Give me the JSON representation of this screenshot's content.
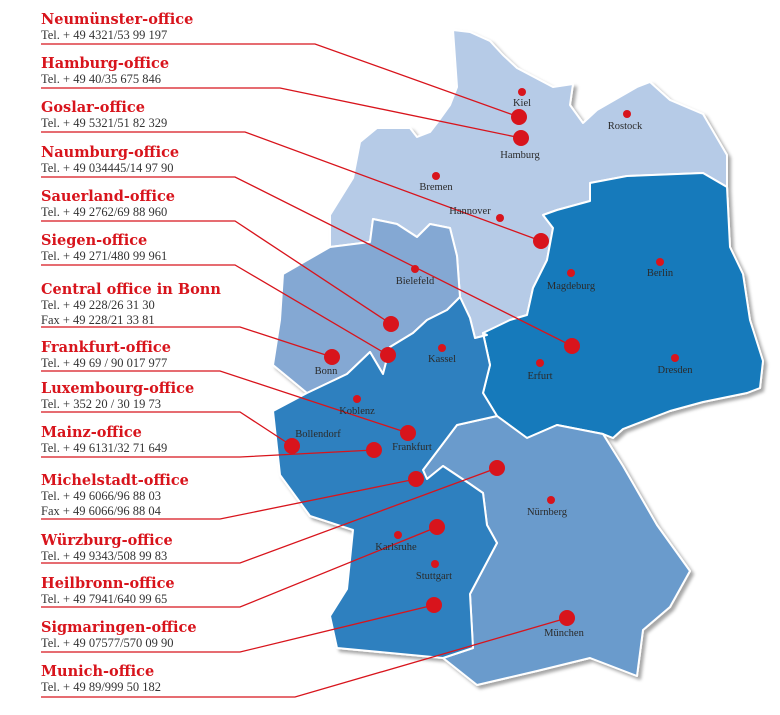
{
  "colors": {
    "accent_red": "#d8141c",
    "region_north": "#b6cbe7",
    "region_nrw": "#84a8d3",
    "region_west_south": "#2f80bf",
    "region_east": "#127abb",
    "region_bavaria": "#6a9bcc"
  },
  "offices": [
    {
      "name": "Neumünster-office",
      "lines": [
        "Tel. + 49 4321/53 99 197"
      ]
    },
    {
      "name": "Hamburg-office",
      "lines": [
        "Tel. + 49 40/35 675 846"
      ]
    },
    {
      "name": "Goslar-office",
      "lines": [
        "Tel. + 49 5321/51 82 329"
      ]
    },
    {
      "name": "Naumburg-office",
      "lines": [
        "Tel. + 49 034445/14 97 90"
      ]
    },
    {
      "name": "Sauerland-office",
      "lines": [
        "Tel. + 49 2762/69 88 960"
      ]
    },
    {
      "name": "Siegen-office",
      "lines": [
        "Tel. + 49 271/480 99 961"
      ]
    },
    {
      "name": "Central office in Bonn",
      "lines": [
        "Tel. + 49 228/26 31 30",
        "Fax + 49 228/21 33 81"
      ]
    },
    {
      "name": "Frankfurt-office",
      "lines": [
        "Tel. + 49 69 / 90 017 977"
      ]
    },
    {
      "name": "Luxembourg-office",
      "lines": [
        "Tel. + 352 20 / 30 19 73"
      ]
    },
    {
      "name": "Mainz-office",
      "lines": [
        "Tel. + 49 6131/32 71 649"
      ]
    },
    {
      "name": "Michelstadt-office",
      "lines": [
        "Tel. + 49 6066/96 88 03",
        "Fax + 49 6066/96 88 04"
      ]
    },
    {
      "name": "Würzburg-office",
      "lines": [
        "Tel. + 49 9343/508 99 83"
      ]
    },
    {
      "name": "Heilbronn-office",
      "lines": [
        "Tel. + 49 7941/640 99 65"
      ]
    },
    {
      "name": "Sigmaringen-office",
      "lines": [
        "Tel. + 49 07577/570 09 90"
      ]
    },
    {
      "name": "Munich-office",
      "lines": [
        "Tel. + 49 89/999 50 182"
      ]
    }
  ],
  "cities": [
    "Kiel",
    "Rostock",
    "Hamburg",
    "Bremen",
    "Hannover",
    "Berlin",
    "Magdeburg",
    "Bielefeld",
    "Kassel",
    "Bonn",
    "Erfurt",
    "Dresden",
    "Koblenz",
    "Bollendorf",
    "Frankfurt",
    "Nürnberg",
    "Karlsruhe",
    "Stuttgart",
    "München"
  ]
}
